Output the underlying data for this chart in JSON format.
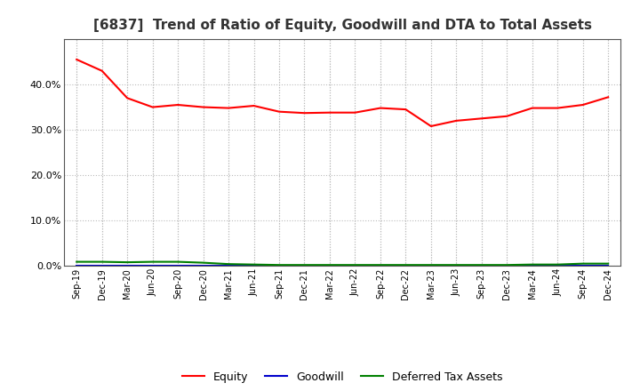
{
  "title": "[6837]  Trend of Ratio of Equity, Goodwill and DTA to Total Assets",
  "x_labels": [
    "Sep-19",
    "Dec-19",
    "Mar-20",
    "Jun-20",
    "Sep-20",
    "Dec-20",
    "Mar-21",
    "Jun-21",
    "Sep-21",
    "Dec-21",
    "Mar-22",
    "Jun-22",
    "Sep-22",
    "Dec-22",
    "Mar-23",
    "Jun-23",
    "Sep-23",
    "Dec-23",
    "Mar-24",
    "Jun-24",
    "Sep-24",
    "Dec-24"
  ],
  "equity": [
    0.455,
    0.43,
    0.37,
    0.35,
    0.355,
    0.35,
    0.348,
    0.353,
    0.34,
    0.337,
    0.338,
    0.338,
    0.348,
    0.345,
    0.308,
    0.32,
    0.325,
    0.33,
    0.348,
    0.348,
    0.355,
    0.372
  ],
  "goodwill": [
    0.0,
    0.0,
    0.0,
    0.0,
    0.0,
    0.0,
    0.0,
    0.0,
    0.0,
    0.0,
    0.0,
    0.0,
    0.0,
    0.0,
    0.0,
    0.0,
    0.0,
    0.0,
    0.0,
    0.0,
    0.0,
    0.0
  ],
  "dta": [
    0.009,
    0.009,
    0.008,
    0.009,
    0.009,
    0.007,
    0.004,
    0.003,
    0.002,
    0.002,
    0.002,
    0.002,
    0.002,
    0.002,
    0.002,
    0.002,
    0.002,
    0.002,
    0.003,
    0.003,
    0.005,
    0.005
  ],
  "equity_color": "#ff0000",
  "goodwill_color": "#0000cc",
  "dta_color": "#008000",
  "ylim": [
    0.0,
    0.5
  ],
  "yticks": [
    0.0,
    0.1,
    0.2,
    0.3,
    0.4
  ],
  "background_color": "#ffffff",
  "plot_bg_color": "#ffffff",
  "grid_color": "#bbbbbb",
  "title_fontsize": 11,
  "title_color": "#333333",
  "legend_labels": [
    "Equity",
    "Goodwill",
    "Deferred Tax Assets"
  ]
}
